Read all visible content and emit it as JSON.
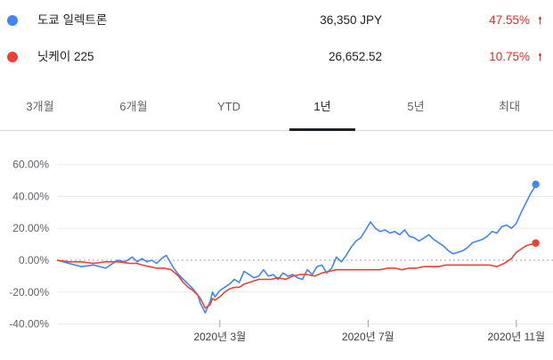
{
  "legend": [
    {
      "name": "도쿄 일렉트론",
      "price": "36,350 JPY",
      "change": "47.55%",
      "arrow": "🠕",
      "color": "#4285f4"
    },
    {
      "name": "닛케이 225",
      "price": "26,652.52",
      "change": "10.75%",
      "arrow": "🠕",
      "color": "#ea4335"
    }
  ],
  "change_color": "#d93025",
  "tabs": [
    {
      "label": "3개월",
      "active": false
    },
    {
      "label": "6개월",
      "active": false
    },
    {
      "label": "YTD",
      "active": false
    },
    {
      "label": "1년",
      "active": true
    },
    {
      "label": "5년",
      "active": false
    },
    {
      "label": "최대",
      "active": false
    }
  ],
  "chart_data": {
    "type": "line",
    "y_ticks": [
      "60.00%",
      "40.00%",
      "20.00%",
      "0.00%",
      "-20.00%",
      "-40.00%"
    ],
    "y_tick_values": [
      60,
      40,
      20,
      0,
      -20,
      -40
    ],
    "ylim": [
      -40,
      60
    ],
    "x_ticks": [
      "2020년 3월",
      "2020년 7월",
      "2020년 11월"
    ],
    "x_tick_days": [
      134,
      256,
      378
    ],
    "x_range_days": [
      0,
      395
    ],
    "series": [
      {
        "name": "도쿄 일렉트론",
        "color": "#4285f4",
        "days": [
          0,
          10,
          20,
          30,
          40,
          50,
          56,
          62,
          66,
          70,
          74,
          78,
          82,
          86,
          90,
          96,
          100,
          104,
          108,
          112,
          116,
          118,
          122,
          126,
          128,
          130,
          134,
          138,
          142,
          146,
          150,
          154,
          158,
          162,
          166,
          170,
          174,
          178,
          182,
          186,
          190,
          194,
          198,
          202,
          206,
          210,
          214,
          218,
          222,
          226,
          230,
          234,
          238,
          242,
          246,
          250,
          254,
          258,
          262,
          266,
          270,
          274,
          278,
          282,
          286,
          290,
          294,
          298,
          302,
          306,
          310,
          314,
          318,
          322,
          326,
          330,
          334,
          338,
          342,
          346,
          350,
          354,
          358,
          362,
          366,
          370,
          374,
          378,
          382,
          386,
          390,
          394
        ],
        "values": [
          0,
          -2,
          -4,
          -3,
          -5,
          0,
          -1,
          2,
          -1,
          1,
          -1,
          0,
          -2,
          1,
          3,
          -5,
          -9,
          -12,
          -15,
          -18,
          -22,
          -27,
          -33,
          -26,
          -20,
          -23,
          -19,
          -17,
          -15,
          -12,
          -14,
          -7,
          -9,
          -11,
          -10,
          -6,
          -10,
          -9,
          -12,
          -8,
          -10,
          -9,
          -11,
          -12,
          -6,
          -9,
          -4,
          -3,
          -8,
          -5,
          2,
          -1,
          3,
          8,
          12,
          14,
          19,
          24,
          20,
          18,
          19,
          17,
          18,
          16,
          19,
          15,
          14,
          12,
          14,
          16,
          13,
          11,
          9,
          6,
          4,
          5,
          6,
          8,
          11,
          12,
          13,
          15,
          18,
          17,
          21,
          22,
          20,
          23,
          30,
          36,
          42,
          47
        ],
        "end_value": 47.55
      },
      {
        "name": "닛케이 225",
        "color": "#ea4335",
        "days": [
          0,
          10,
          20,
          30,
          40,
          50,
          60,
          66,
          70,
          76,
          82,
          88,
          94,
          100,
          104,
          108,
          112,
          116,
          118,
          122,
          126,
          128,
          130,
          134,
          138,
          142,
          146,
          150,
          154,
          158,
          162,
          166,
          170,
          176,
          182,
          188,
          194,
          200,
          206,
          212,
          218,
          224,
          230,
          236,
          242,
          248,
          254,
          260,
          266,
          272,
          278,
          284,
          290,
          296,
          302,
          308,
          314,
          320,
          326,
          332,
          338,
          344,
          350,
          356,
          362,
          368,
          374,
          378,
          382,
          386,
          390,
          394
        ],
        "values": [
          0,
          -1,
          -1,
          -2,
          -1,
          -1,
          -2,
          -2,
          -3,
          -4,
          -5,
          -5,
          -6,
          -10,
          -14,
          -17,
          -19,
          -22,
          -24,
          -30,
          -28,
          -24,
          -25,
          -23,
          -20,
          -18,
          -17,
          -17,
          -15,
          -14,
          -13,
          -12,
          -12,
          -12,
          -11,
          -12,
          -10,
          -9,
          -9,
          -10,
          -8,
          -7,
          -6,
          -6,
          -6,
          -6,
          -6,
          -6,
          -6,
          -5,
          -5,
          -6,
          -5,
          -5,
          -4,
          -4,
          -4,
          -3,
          -3,
          -3,
          -3,
          -3,
          -3,
          -3,
          -4,
          -2,
          1,
          5,
          7,
          9,
          10,
          10
        ],
        "end_value": 10.75
      }
    ]
  }
}
